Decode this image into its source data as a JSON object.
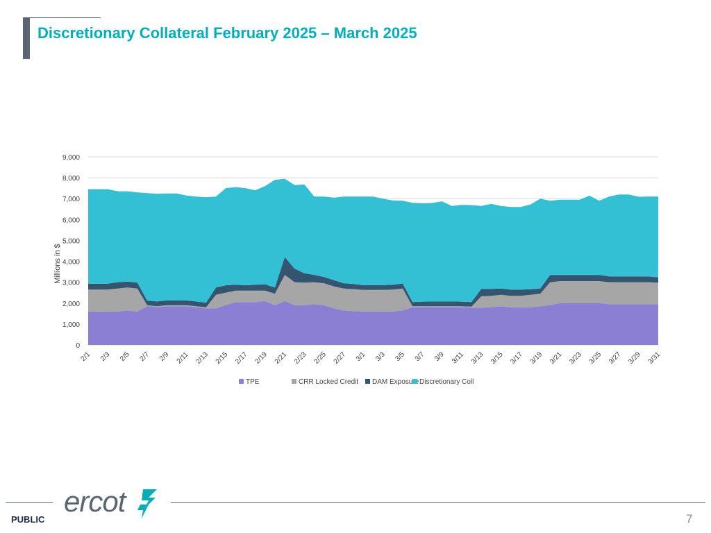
{
  "slide": {
    "title": "Discretionary Collateral February 2025 – March 2025",
    "classification": "PUBLIC",
    "page_number": "7",
    "logo_text": "ercot"
  },
  "colors": {
    "title": "#00aeb8",
    "TPE": "#8a7fd2",
    "CRR Locked Credit": "#a6a6a6",
    "DAM Exposure": "#34546f",
    "Discretionary Coll": "#33bfd4"
  },
  "chart_data": {
    "type": "area",
    "stacked": true,
    "title": "",
    "xlabel": "",
    "ylabel": "Millions in $",
    "ylim": [
      0,
      9000
    ],
    "yticks": [
      0,
      1000,
      2000,
      3000,
      4000,
      5000,
      6000,
      7000,
      8000,
      9000
    ],
    "ytick_labels": [
      "0",
      "1,000",
      "2,000",
      "3,000",
      "4,000",
      "5,000",
      "6,000",
      "7,000",
      "8,000",
      "9,000"
    ],
    "grid": true,
    "legend_position": "bottom",
    "x_tick_labels": [
      "2/1",
      "2/3",
      "2/5",
      "2/7",
      "2/9",
      "2/11",
      "2/13",
      "2/15",
      "2/17",
      "2/19",
      "2/21",
      "2/23",
      "2/25",
      "2/27",
      "3/1",
      "3/3",
      "3/5",
      "3/7",
      "3/9",
      "3/11",
      "3/13",
      "3/15",
      "3/17",
      "3/19",
      "3/21",
      "3/23",
      "3/25",
      "3/27",
      "3/29",
      "3/31"
    ],
    "series": [
      {
        "name": "TPE",
        "values": [
          1600,
          1600,
          1600,
          1600,
          1650,
          1600,
          1850,
          1800,
          1850,
          1850,
          1850,
          1800,
          1750,
          1750,
          1900,
          2050,
          2050,
          2050,
          2100,
          1900,
          2100,
          1900,
          1900,
          1950,
          1900,
          1750,
          1650,
          1620,
          1600,
          1600,
          1600,
          1600,
          1650,
          1800,
          1800,
          1800,
          1800,
          1800,
          1800,
          1780,
          1780,
          1800,
          1850,
          1800,
          1800,
          1800,
          1850,
          1900,
          2000,
          2000,
          2000,
          2000,
          2000,
          1950,
          1950,
          1950,
          1950,
          1950,
          1950
        ]
      },
      {
        "name": "CRR Locked Credit",
        "values": [
          1050,
          1050,
          1050,
          1100,
          1100,
          1100,
          50,
          50,
          50,
          50,
          50,
          50,
          50,
          650,
          600,
          550,
          550,
          550,
          500,
          550,
          1250,
          1100,
          1080,
          1050,
          1050,
          1050,
          1050,
          1050,
          1030,
          1030,
          1030,
          1050,
          1050,
          50,
          50,
          50,
          50,
          50,
          50,
          50,
          550,
          550,
          550,
          550,
          550,
          600,
          600,
          1100,
          1050,
          1050,
          1050,
          1050,
          1050,
          1050,
          1050,
          1050,
          1050,
          1050,
          1030
        ]
      },
      {
        "name": "DAM Exposure",
        "values": [
          280,
          280,
          280,
          300,
          280,
          280,
          220,
          230,
          230,
          230,
          230,
          230,
          220,
          350,
          350,
          280,
          250,
          280,
          300,
          300,
          850,
          650,
          450,
          350,
          300,
          300,
          250,
          250,
          230,
          230,
          230,
          230,
          240,
          200,
          220,
          230,
          230,
          230,
          220,
          220,
          350,
          330,
          300,
          300,
          300,
          260,
          250,
          350,
          300,
          300,
          300,
          300,
          300,
          280,
          280,
          280,
          280,
          280,
          250
        ]
      },
      {
        "name": "Discretionary Coll",
        "values": [
          4520,
          4520,
          4520,
          4350,
          4320,
          4320,
          5150,
          5150,
          5120,
          5120,
          5020,
          5020,
          5050,
          4350,
          4650,
          4670,
          4650,
          4520,
          4700,
          5150,
          3750,
          4000,
          4250,
          3750,
          3850,
          3950,
          4150,
          4180,
          4240,
          4240,
          4140,
          4030,
          3960,
          4750,
          4710,
          4710,
          4790,
          4570,
          4630,
          4640,
          3970,
          4070,
          3950,
          3950,
          3950,
          4060,
          4300,
          3550,
          3600,
          3600,
          3600,
          3790,
          3550,
          3820,
          3920,
          3920,
          3810,
          3820,
          3870
        ]
      }
    ]
  }
}
